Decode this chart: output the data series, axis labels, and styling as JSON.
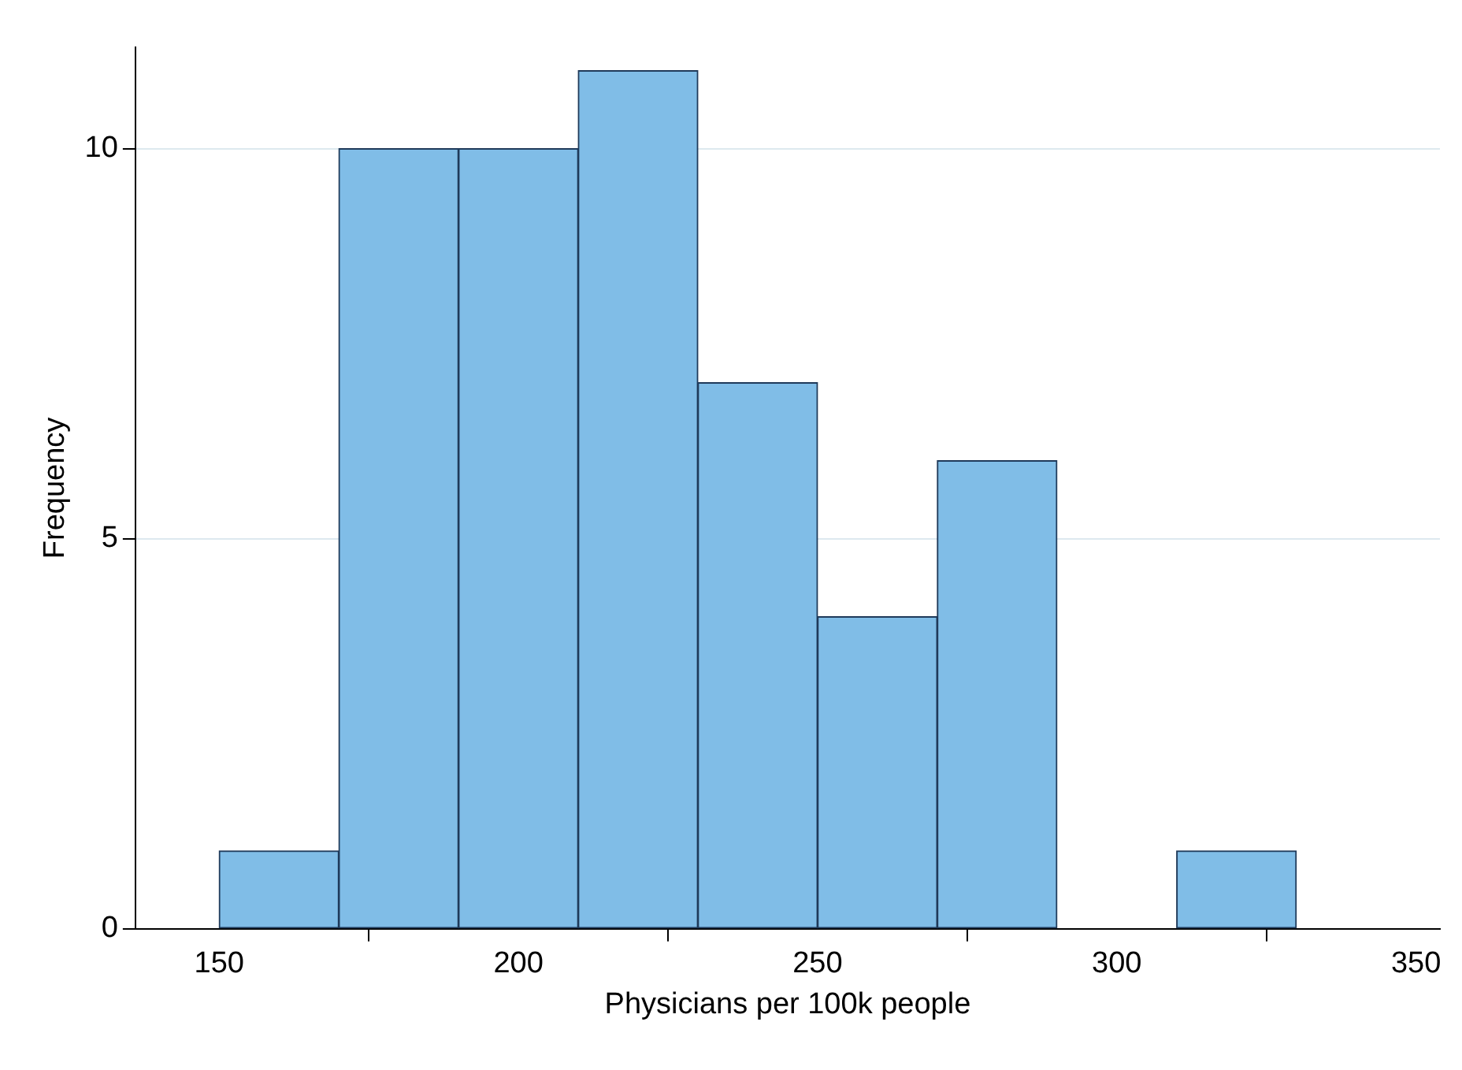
{
  "chart_data": {
    "type": "histogram",
    "xlabel": "Physicians per 100k people",
    "ylabel": "Frequency",
    "bins": [
      150,
      170,
      190,
      210,
      230,
      250,
      270,
      290,
      310,
      330
    ],
    "values": [
      1,
      10,
      10,
      11,
      7,
      4,
      6,
      0,
      1
    ],
    "color": "#80bde7",
    "xlim": [
      136,
      354
    ],
    "xticks": [
      150,
      200,
      250,
      300,
      350
    ],
    "ylim": [
      0,
      11.3
    ],
    "yticks": [
      0,
      5,
      10
    ],
    "grid": "y",
    "legend": false
  }
}
